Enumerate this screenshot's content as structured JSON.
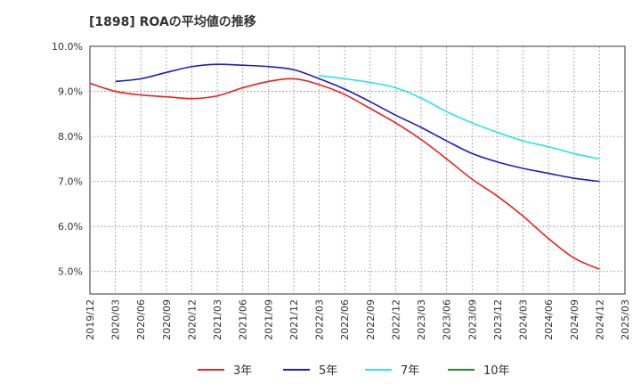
{
  "chart_data": {
    "type": "line",
    "title": "[1898]  ROAの平均値の推移",
    "xlabel": "",
    "ylabel": "",
    "ylim": [
      4.5,
      10.0
    ],
    "grid": true,
    "legend_position": "bottom",
    "y_ticks": [
      "5.0%",
      "6.0%",
      "7.0%",
      "8.0%",
      "9.0%",
      "10.0%"
    ],
    "y_tick_values": [
      5.0,
      6.0,
      7.0,
      8.0,
      9.0,
      10.0
    ],
    "categories": [
      "2019/12",
      "2020/03",
      "2020/06",
      "2020/09",
      "2020/12",
      "2021/03",
      "2021/06",
      "2021/09",
      "2021/12",
      "2022/03",
      "2022/06",
      "2022/09",
      "2022/12",
      "2023/03",
      "2023/06",
      "2023/09",
      "2023/12",
      "2024/03",
      "2024/06",
      "2024/09",
      "2024/12",
      "2025/03"
    ],
    "series": [
      {
        "name": "3年",
        "color": "#e8201e",
        "values": [
          9.18,
          9.0,
          8.92,
          8.88,
          8.84,
          8.9,
          9.08,
          9.22,
          9.28,
          9.15,
          8.93,
          8.62,
          8.3,
          7.93,
          7.5,
          7.05,
          6.67,
          6.23,
          5.73,
          5.3,
          5.05,
          null
        ]
      },
      {
        "name": "5年",
        "color": "#1c1cc8",
        "values": [
          null,
          9.22,
          9.28,
          9.42,
          9.55,
          9.6,
          9.58,
          9.55,
          9.48,
          9.28,
          9.05,
          8.77,
          8.47,
          8.2,
          7.9,
          7.62,
          7.43,
          7.29,
          7.18,
          7.07,
          7.0,
          null
        ]
      },
      {
        "name": "7年",
        "color": "#22e5e5",
        "values": [
          null,
          null,
          null,
          null,
          null,
          null,
          null,
          null,
          null,
          9.35,
          9.28,
          9.2,
          9.08,
          8.85,
          8.55,
          8.3,
          8.09,
          7.9,
          7.77,
          7.62,
          7.5,
          null
        ]
      },
      {
        "name": "10年",
        "color": "#1e8c1e",
        "values": [
          null,
          null,
          null,
          null,
          null,
          null,
          null,
          null,
          null,
          null,
          null,
          null,
          null,
          null,
          null,
          null,
          null,
          null,
          null,
          null,
          null,
          null
        ]
      }
    ]
  }
}
